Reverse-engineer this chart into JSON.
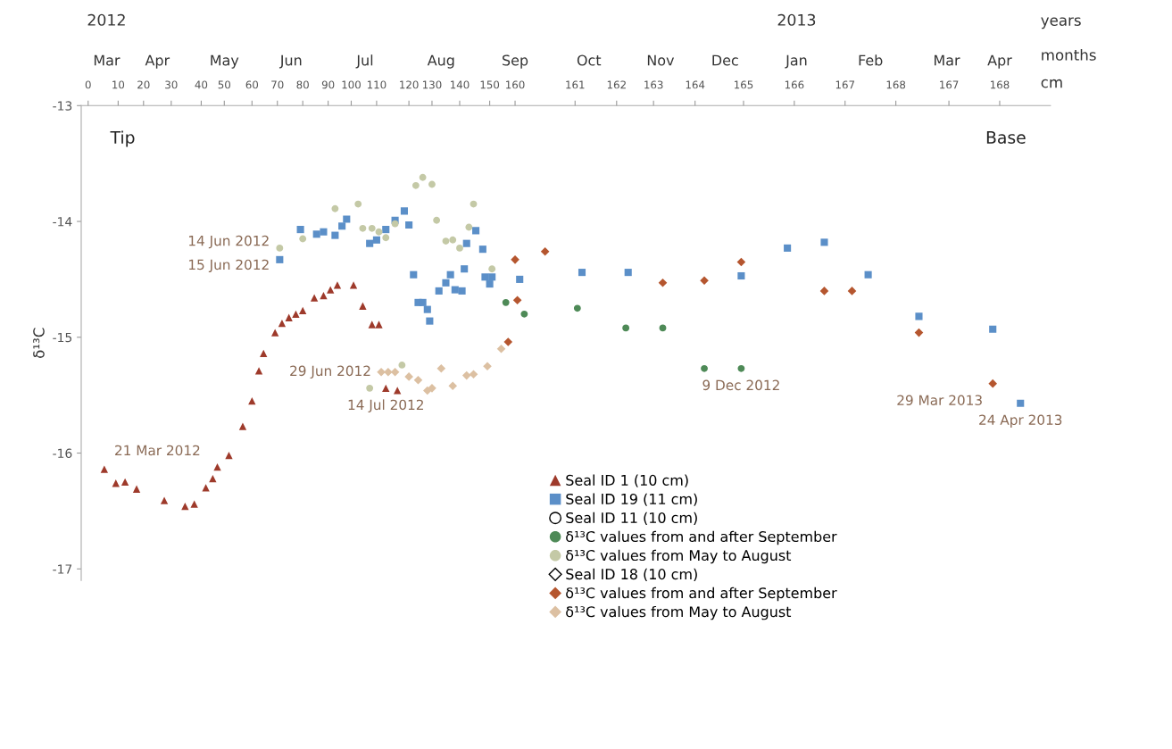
{
  "chart_data": {
    "type": "scatter",
    "ylabel": "δ¹³C",
    "xlabel": "months",
    "x2label": "cm",
    "xlim": [
      "2012-03-11",
      "2013-05-05"
    ],
    "x2lim": [
      "2012-03-11",
      "2013-05-05"
    ],
    "ylim": [
      -17.1,
      -13
    ],
    "yticks": [
      -17,
      -16,
      -15,
      -14,
      -13
    ],
    "xticks": [
      {
        "value": "2012-03-22",
        "label": "Mar"
      },
      {
        "value": "2012-04-13",
        "label": "Apr"
      },
      {
        "value": "2012-05-12",
        "label": "May"
      },
      {
        "value": "2012-06-10",
        "label": "Jun"
      },
      {
        "value": "2012-07-12",
        "label": "Jul"
      },
      {
        "value": "2012-08-14",
        "label": "Aug"
      },
      {
        "value": "2012-09-15",
        "label": "Sep"
      },
      {
        "value": "2012-10-17",
        "label": "Oct"
      },
      {
        "value": "2012-11-17",
        "label": "Nov"
      },
      {
        "value": "2012-12-15",
        "label": "Dec"
      },
      {
        "value": "2013-01-15",
        "label": "Jan"
      },
      {
        "value": "2013-02-16",
        "label": "Feb"
      },
      {
        "value": "2013-03-21",
        "label": "Mar"
      },
      {
        "value": "2013-04-13",
        "label": "Apr"
      }
    ],
    "x2ticks": [
      {
        "value": "2012-03-14",
        "label": "0"
      },
      {
        "value": "2012-03-27",
        "label": "10"
      },
      {
        "value": "2012-04-07",
        "label": "20"
      },
      {
        "value": "2012-04-19",
        "label": "30"
      },
      {
        "value": "2012-05-02",
        "label": "40"
      },
      {
        "value": "2012-05-12",
        "label": "50"
      },
      {
        "value": "2012-05-24",
        "label": "60"
      },
      {
        "value": "2012-06-04",
        "label": "70"
      },
      {
        "value": "2012-06-15",
        "label": "80"
      },
      {
        "value": "2012-06-26",
        "label": "90"
      },
      {
        "value": "2012-07-06",
        "label": "100"
      },
      {
        "value": "2012-07-17",
        "label": "110"
      },
      {
        "value": "2012-07-31",
        "label": "120"
      },
      {
        "value": "2012-08-10",
        "label": "130"
      },
      {
        "value": "2012-08-22",
        "label": "140"
      },
      {
        "value": "2012-09-04",
        "label": "150"
      },
      {
        "value": "2012-09-15",
        "label": "160"
      },
      {
        "value": "2012-10-11",
        "label": "161"
      },
      {
        "value": "2012-10-29",
        "label": "162"
      },
      {
        "value": "2012-11-14",
        "label": "163"
      },
      {
        "value": "2012-12-02",
        "label": "164"
      },
      {
        "value": "2012-12-23",
        "label": "165"
      },
      {
        "value": "2013-01-14",
        "label": "166"
      },
      {
        "value": "2013-02-05",
        "label": "167"
      },
      {
        "value": "2013-02-27",
        "label": "168"
      },
      {
        "value": "2013-03-22",
        "label": "167"
      },
      {
        "value": "2013-04-13",
        "label": "168"
      }
    ],
    "grid": false,
    "legend": "bottom",
    "annotations": [
      "Tip",
      "Base",
      "years",
      "2012",
      "2013",
      {
        "text": "15 Jun 2012",
        "x": "2012-06-05",
        "y": -14.23
      },
      {
        "text": "14 Jun 2012",
        "x": "2012-06-05",
        "y": -14.33
      },
      {
        "text": "14 Jul 2012",
        "x": "2012-07-21",
        "y": -15.44
      },
      {
        "text": "29 Jun 2012",
        "x": "2012-07-19",
        "y": -15.3
      },
      {
        "text": "21 Mar 2012",
        "x": "2012-03-21",
        "y": -16.14
      },
      {
        "text": "9 Dec 2012",
        "x": "2012-12-22",
        "y": -15.27
      },
      {
        "text": "29 Mar 2013",
        "x": "2013-04-10",
        "y": -15.4
      },
      {
        "text": "24 Apr 2013",
        "x": "2013-04-22",
        "y": -15.57
      }
    ],
    "series": [
      {
        "name": "Seal ID 1 (10 cm)",
        "marker": "triangle",
        "color": "#9e3a2b",
        "x": [
          "2012-03-21",
          "2012-03-26",
          "2012-03-30",
          "2012-04-04",
          "2012-04-16",
          "2012-04-25",
          "2012-04-29",
          "2012-05-04",
          "2012-05-07",
          "2012-05-09",
          "2012-05-14",
          "2012-05-20",
          "2012-05-24",
          "2012-05-27",
          "2012-05-29",
          "2012-06-03",
          "2012-06-06",
          "2012-06-09",
          "2012-06-12",
          "2012-06-15",
          "2012-06-20",
          "2012-06-24",
          "2012-06-27",
          "2012-06-30",
          "2012-07-07",
          "2012-07-11",
          "2012-07-15",
          "2012-07-18",
          "2012-07-21",
          "2012-07-26"
        ],
        "values": [
          -16.14,
          -16.26,
          -16.25,
          -16.31,
          -16.41,
          -16.46,
          -16.44,
          -16.3,
          -16.22,
          -16.12,
          -16.02,
          -15.77,
          -15.55,
          -15.29,
          -15.14,
          -14.96,
          -14.88,
          -14.83,
          -14.8,
          -14.77,
          -14.66,
          -14.64,
          -14.59,
          -14.55,
          -14.55,
          -14.73,
          -14.89,
          -14.89,
          -15.44,
          -15.46
        ]
      },
      {
        "name": "Seal ID 19 (11 cm)",
        "marker": "square",
        "color": "#5b8fc8",
        "x": [
          "2012-06-05",
          "2012-06-14",
          "2012-06-21",
          "2012-06-24",
          "2012-06-29",
          "2012-07-02",
          "2012-07-04",
          "2012-07-14",
          "2012-07-17",
          "2012-07-21",
          "2012-07-25",
          "2012-07-29",
          "2012-07-31",
          "2012-08-02",
          "2012-08-04",
          "2012-08-06",
          "2012-08-08",
          "2012-08-09",
          "2012-08-13",
          "2012-08-16",
          "2012-08-18",
          "2012-08-20",
          "2012-08-23",
          "2012-08-24",
          "2012-08-25",
          "2012-08-29",
          "2012-09-01",
          "2012-09-02",
          "2012-09-04",
          "2012-09-05",
          "2012-09-17",
          "2012-10-14",
          "2012-11-03",
          "2012-12-22",
          "2013-01-11",
          "2013-01-27",
          "2013-02-15",
          "2013-03-09",
          "2013-04-10",
          "2013-04-22"
        ],
        "values": [
          -14.33,
          -14.07,
          -14.11,
          -14.09,
          -14.12,
          -14.04,
          -13.98,
          -14.19,
          -14.16,
          -14.07,
          -13.99,
          -13.91,
          -14.03,
          -14.46,
          -14.7,
          -14.7,
          -14.76,
          -14.86,
          -14.6,
          -14.53,
          -14.46,
          -14.59,
          -14.6,
          -14.41,
          -14.19,
          -14.08,
          -14.24,
          -14.48,
          -14.54,
          -14.48,
          -14.5,
          -14.44,
          -14.44,
          -14.47,
          -14.23,
          -14.18,
          -14.46,
          -14.82,
          -14.93,
          -15.57
        ]
      },
      {
        "name": "Seal ID 11 (10 cm)",
        "marker": "circle",
        "color": "#000000"
      },
      {
        "name": "δ¹³C values from and after September",
        "marker": "circle",
        "color": "#4e8a57",
        "x": [
          "2012-09-11",
          "2012-09-19",
          "2012-10-12",
          "2012-11-02",
          "2012-11-18",
          "2012-12-06",
          "2012-12-22"
        ],
        "values": [
          -14.7,
          -14.8,
          -14.75,
          -14.92,
          -14.92,
          -15.27,
          -15.27
        ]
      },
      {
        "name": "δ¹³C values from May to August",
        "marker": "circle",
        "color": "#c4c9a6",
        "x": [
          "2012-06-05",
          "2012-06-15",
          "2012-06-29",
          "2012-07-09",
          "2012-07-11",
          "2012-07-14",
          "2012-07-15",
          "2012-07-18",
          "2012-07-21",
          "2012-07-25",
          "2012-07-28",
          "2012-08-03",
          "2012-08-06",
          "2012-08-10",
          "2012-08-12",
          "2012-08-16",
          "2012-08-19",
          "2012-08-22",
          "2012-08-26",
          "2012-08-28",
          "2012-09-05"
        ],
        "values": [
          -14.23,
          -14.15,
          -13.89,
          -13.85,
          -14.06,
          -15.44,
          -14.06,
          -14.09,
          -14.14,
          -14.02,
          -15.24,
          -13.69,
          -13.62,
          -13.68,
          -13.99,
          -14.17,
          -14.16,
          -14.23,
          -14.05,
          -13.85,
          -14.41
        ]
      },
      {
        "name": "Seal ID 18 (10 cm)",
        "marker": "diamond",
        "color": "#000000"
      },
      {
        "name": "δ¹³C values from and after September",
        "marker": "diamond",
        "color": "#b5562f",
        "x": [
          "2012-09-12",
          "2012-09-15",
          "2012-09-16",
          "2012-09-28",
          "2012-11-18",
          "2012-12-06",
          "2012-12-22",
          "2013-01-27",
          "2013-02-08",
          "2013-03-09",
          "2013-04-10"
        ],
        "values": [
          -15.04,
          -14.33,
          -14.68,
          -14.26,
          -14.53,
          -14.51,
          -14.35,
          -14.6,
          -14.6,
          -14.96,
          -15.4
        ]
      },
      {
        "name": "δ¹³C values from May to August",
        "marker": "diamond",
        "color": "#dcc0a2",
        "x": [
          "2012-07-19",
          "2012-07-22",
          "2012-07-25",
          "2012-07-31",
          "2012-08-04",
          "2012-08-08",
          "2012-08-10",
          "2012-08-14",
          "2012-08-19",
          "2012-08-25",
          "2012-08-28",
          "2012-09-03",
          "2012-09-09"
        ],
        "values": [
          -15.3,
          -15.3,
          -15.3,
          -15.34,
          -15.37,
          -15.46,
          -15.44,
          -15.27,
          -15.42,
          -15.33,
          -15.32,
          -15.25,
          -15.1
        ]
      }
    ]
  }
}
